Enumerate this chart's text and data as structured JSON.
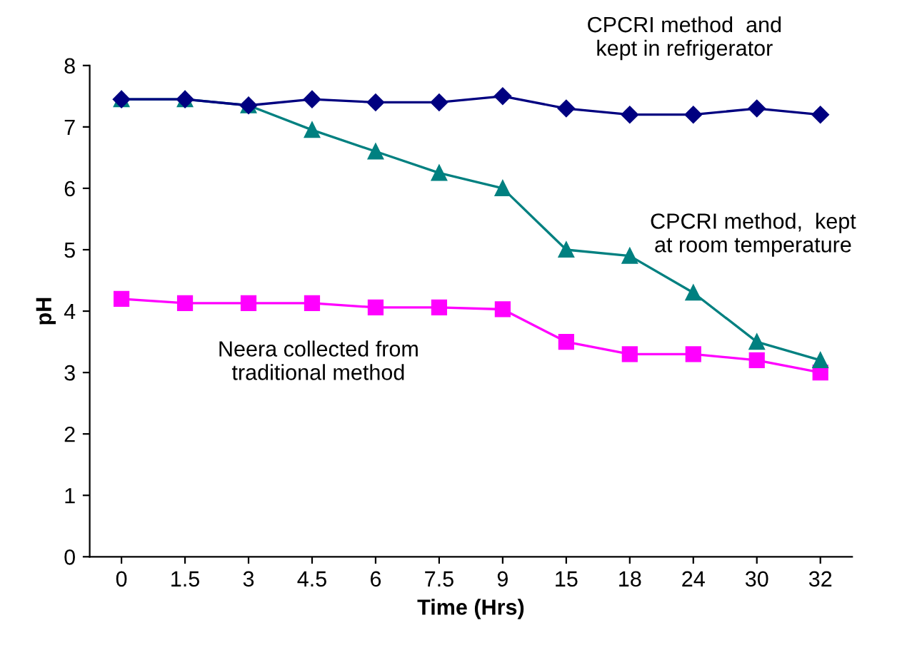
{
  "chart_data": {
    "type": "line",
    "xlabel": "Time (Hrs)",
    "ylabel": "pH",
    "categories": [
      "0",
      "1.5",
      "3",
      "4.5",
      "6",
      "7.5",
      "9",
      "15",
      "18",
      "24",
      "30",
      "32"
    ],
    "series": [
      {
        "name": "CPCRI method  and\nkept in refrigerator",
        "color": "#000080",
        "marker": "diamond",
        "values": [
          7.45,
          7.45,
          7.35,
          7.45,
          7.4,
          7.4,
          7.5,
          7.3,
          7.2,
          7.2,
          7.3,
          7.2
        ]
      },
      {
        "name": "CPCRI method,  kept\nat room temperature",
        "color": "#008080",
        "marker": "triangle",
        "values": [
          7.45,
          7.45,
          7.35,
          6.95,
          6.6,
          6.25,
          6.0,
          5.0,
          4.9,
          4.3,
          3.5,
          3.2
        ]
      },
      {
        "name": "Neera collected from\ntraditional method",
        "color": "#ff00ff",
        "marker": "square",
        "values": [
          4.2,
          4.13,
          4.13,
          4.13,
          4.06,
          4.06,
          4.03,
          3.5,
          3.3,
          3.3,
          3.2,
          3.0
        ]
      }
    ],
    "ylim": [
      0,
      8
    ],
    "yticks": [
      0,
      1,
      2,
      3,
      4,
      5,
      6,
      7,
      8
    ],
    "grid": false,
    "legend": false
  }
}
